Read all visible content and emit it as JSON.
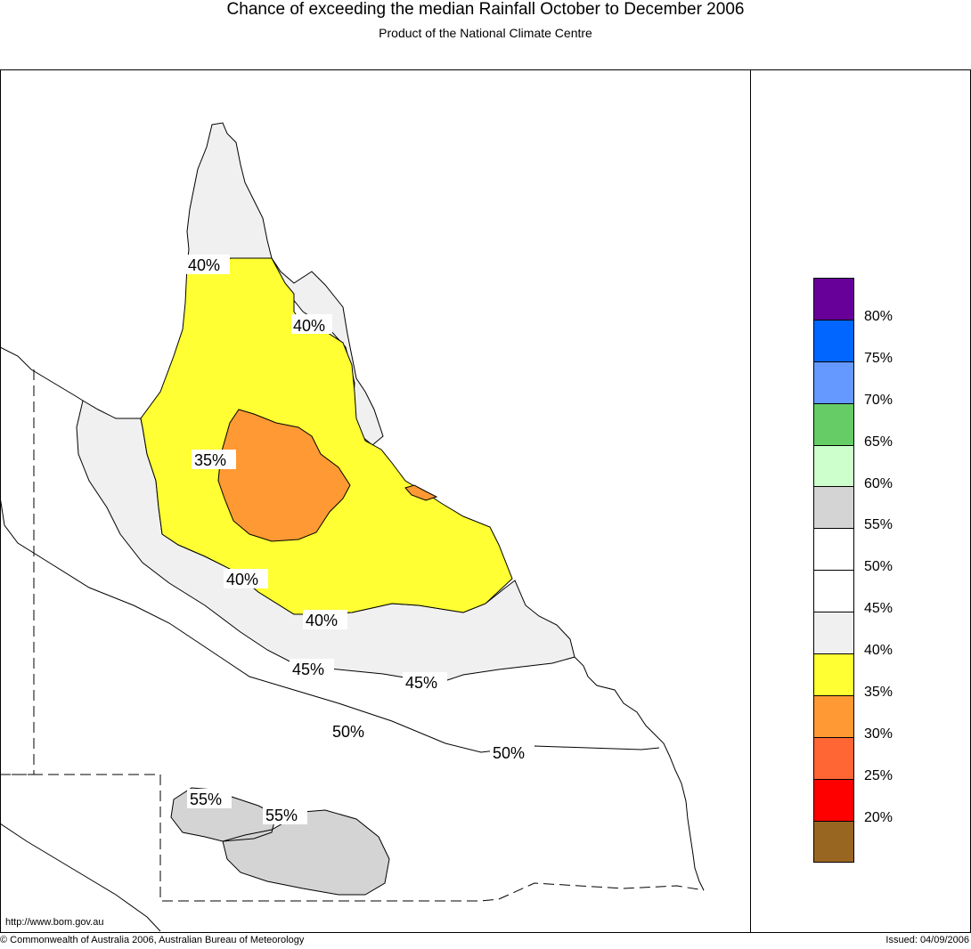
{
  "title": "Chance of exceeding the median Rainfall October to December 2006",
  "subtitle": "Product of the National Climate Centre",
  "map": {
    "contour_labels": [
      {
        "id": "c40a",
        "text": "40%"
      },
      {
        "id": "c40b",
        "text": "40%"
      },
      {
        "id": "c35",
        "text": "35%"
      },
      {
        "id": "c40c",
        "text": "40%"
      },
      {
        "id": "c40d",
        "text": "40%"
      },
      {
        "id": "c45a",
        "text": "45%"
      },
      {
        "id": "c45b",
        "text": "45%"
      },
      {
        "id": "c50a",
        "text": "50%"
      },
      {
        "id": "c50b",
        "text": "50%"
      },
      {
        "id": "c55a",
        "text": "55%"
      },
      {
        "id": "c55b",
        "text": "55%"
      }
    ],
    "fill_colors": {
      "band_35_40": "#ffff33",
      "band_30_35": "#ff9933",
      "band_40_45": "#f0f0f0",
      "band_55_60": "#d4d4d4"
    }
  },
  "legend": {
    "items": [
      {
        "color": "#660099",
        "label": ""
      },
      {
        "color": "#0066ff",
        "label": "80%"
      },
      {
        "color": "#6699ff",
        "label": "75%"
      },
      {
        "color": "#66cc66",
        "label": "70%"
      },
      {
        "color": "#ccffcc",
        "label": "65%"
      },
      {
        "color": "#d4d4d4",
        "label": "60%"
      },
      {
        "color": "#ffffff",
        "label": "55%"
      },
      {
        "color": "#ffffff",
        "label": "50%"
      },
      {
        "color": "#f0f0f0",
        "label": "45%"
      },
      {
        "color": "#ffff33",
        "label": "40%"
      },
      {
        "color": "#ff9933",
        "label": "35%"
      },
      {
        "color": "#ff6633",
        "label": "30%"
      },
      {
        "color": "#ff0000",
        "label": "25%"
      },
      {
        "color": "#996622",
        "label": "20%"
      }
    ]
  },
  "footer": {
    "url": "http://www.bom.gov.au",
    "copyright": "© Commonwealth of Australia 2006, Australian Bureau of Meteorology",
    "issued": "Issued: 04/09/2006"
  }
}
